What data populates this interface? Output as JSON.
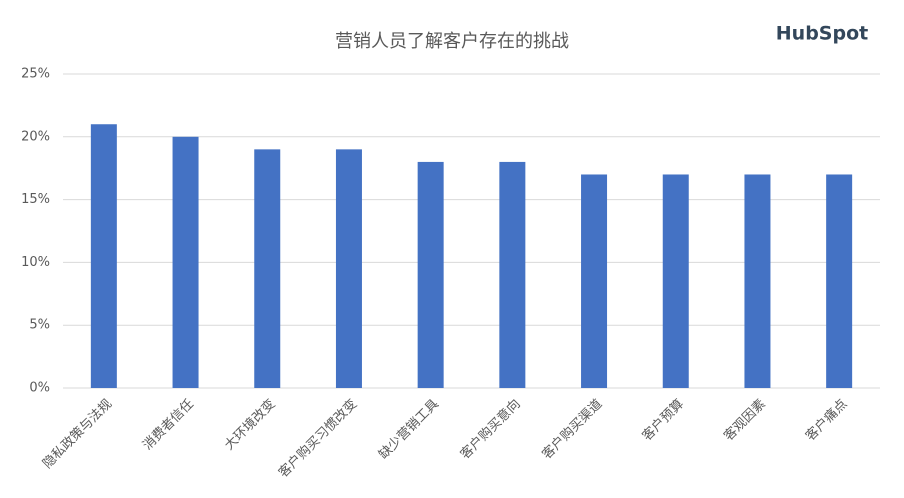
{
  "chart_data": {
    "type": "bar",
    "title": "营销人员了解客户存在的挑战",
    "logo": "HubSpot",
    "categories": [
      "隐私政策与法规",
      "消费者信任",
      "大环境改变",
      "客户购买习惯改变",
      "缺少营销工具",
      "客户购买意向",
      "客户购买渠道",
      "客户预算",
      "客观因素",
      "客户痛点"
    ],
    "values": [
      21,
      20,
      19,
      19,
      18,
      18,
      17,
      17,
      17,
      17
    ],
    "color": "#4472c4",
    "ylim": [
      0,
      25
    ],
    "yticks": [
      {
        "value": 0,
        "label": "0%"
      },
      {
        "value": 5,
        "label": "5%"
      },
      {
        "value": 10,
        "label": "10%"
      },
      {
        "value": 15,
        "label": "15%"
      },
      {
        "value": 20,
        "label": "20%"
      },
      {
        "value": 25,
        "label": "25%"
      }
    ],
    "grid": true
  }
}
